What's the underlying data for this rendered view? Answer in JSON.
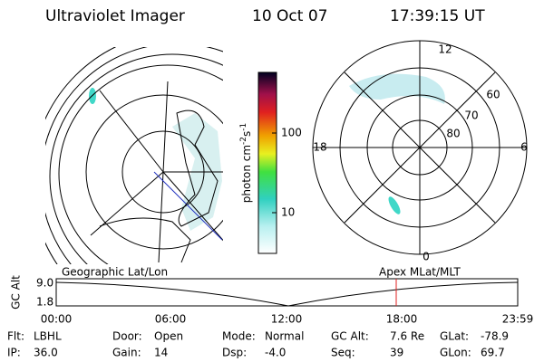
{
  "header": {
    "title": "Ultraviolet Imager",
    "date": "10 Oct 07",
    "time": "17:39:15 UT"
  },
  "colorbar": {
    "label": "photon cm",
    "exp1": "-2",
    "unit2": "s",
    "exp2": "-1",
    "ticks": [
      "100",
      "10"
    ]
  },
  "polar": {
    "mlt_labels": [
      "12",
      "18",
      "6",
      "0"
    ],
    "lat_labels": [
      "60",
      "70",
      "80"
    ]
  },
  "timeline": {
    "left_title": "Geographic Lat/Lon",
    "right_title": "Apex MLat/MLT",
    "axis_label": "GC Alt",
    "y_labels": [
      "9.0",
      "1.8"
    ],
    "x_labels": [
      "00:00",
      "06:00",
      "12:00",
      "18:00",
      "23:59"
    ]
  },
  "info": [
    [
      {
        "label": "Flt:",
        "value": "LBHL"
      },
      {
        "label": "Door:",
        "value": "Open"
      },
      {
        "label": "Mode:",
        "value": "Normal"
      },
      {
        "label": "GC Alt:",
        "value": "7.6 Re"
      },
      {
        "label": "GLat:",
        "value": "-78.9"
      }
    ],
    [
      {
        "label": "IP:",
        "value": "36.0"
      },
      {
        "label": "Gain:",
        "value": "14"
      },
      {
        "label": "Dsp:",
        "value": "-4.0"
      },
      {
        "label": "Seq:",
        "value": "39"
      },
      {
        "label": "GLon:",
        "value": "69.7"
      }
    ]
  ]
}
